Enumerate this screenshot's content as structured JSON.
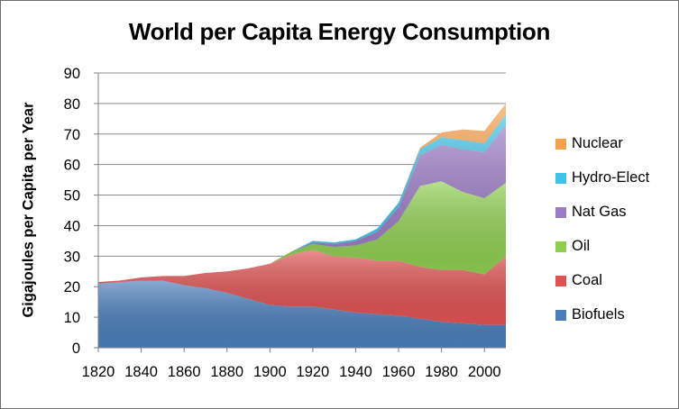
{
  "chart_data": {
    "type": "area",
    "stacked": true,
    "title": "World per Capita Energy Consumption",
    "xlabel": "",
    "ylabel": "Gigajoules per Capita per Year",
    "x": [
      1820,
      1830,
      1840,
      1850,
      1860,
      1870,
      1880,
      1890,
      1900,
      1910,
      1920,
      1930,
      1940,
      1950,
      1960,
      1970,
      1980,
      1990,
      2000,
      2010
    ],
    "xlim": [
      1820,
      2010
    ],
    "x_ticks": [
      "1820",
      "1840",
      "1860",
      "1880",
      "1900",
      "1920",
      "1940",
      "1960",
      "1980",
      "2000"
    ],
    "ylim": [
      0,
      90
    ],
    "y_ticks": [
      "0",
      "10",
      "20",
      "30",
      "40",
      "50",
      "60",
      "70",
      "80",
      "90"
    ],
    "grid": "horizontal",
    "legend_position": "right",
    "series": [
      {
        "name": "Biofuels",
        "color": "#4a7ebb",
        "values": [
          21,
          21.5,
          22,
          22,
          20.5,
          19.5,
          18,
          16,
          14,
          13.5,
          13.5,
          12.5,
          11.5,
          11,
          10.5,
          9.5,
          8.5,
          8,
          7.5,
          7.5
        ]
      },
      {
        "name": "Coal",
        "color": "#e05252",
        "values": [
          0.5,
          0.5,
          1,
          1.5,
          3,
          5,
          7,
          10,
          13.5,
          17,
          18.5,
          17.5,
          18,
          17.5,
          18,
          17,
          17,
          17.5,
          16.5,
          22.5
        ]
      },
      {
        "name": "Oil",
        "color": "#8fcf4f",
        "values": [
          0,
          0,
          0,
          0,
          0,
          0,
          0,
          0,
          0,
          1,
          2,
          3,
          4,
          7,
          13,
          26.5,
          29,
          25.5,
          25,
          24
        ]
      },
      {
        "name": "Nat Gas",
        "color": "#9b7cc6",
        "values": [
          0,
          0,
          0,
          0,
          0,
          0,
          0,
          0,
          0,
          0,
          0.5,
          1,
          1.5,
          2.5,
          4.5,
          10,
          12,
          14,
          15,
          19
        ]
      },
      {
        "name": "Hydro-Elect",
        "color": "#3fc3e8",
        "values": [
          0,
          0,
          0,
          0,
          0,
          0,
          0,
          0,
          0,
          0,
          0.5,
          0.5,
          0.5,
          1,
          1.5,
          2,
          2.5,
          3,
          3,
          3.5
        ]
      },
      {
        "name": "Nuclear",
        "color": "#f9a04a",
        "values": [
          0,
          0,
          0,
          0,
          0,
          0,
          0,
          0,
          0,
          0,
          0,
          0,
          0,
          0,
          0,
          0.5,
          1.5,
          3.5,
          4,
          3.5
        ]
      }
    ],
    "legend_order": [
      "Nuclear",
      "Hydro-Elect",
      "Nat Gas",
      "Oil",
      "Coal",
      "Biofuels"
    ]
  }
}
